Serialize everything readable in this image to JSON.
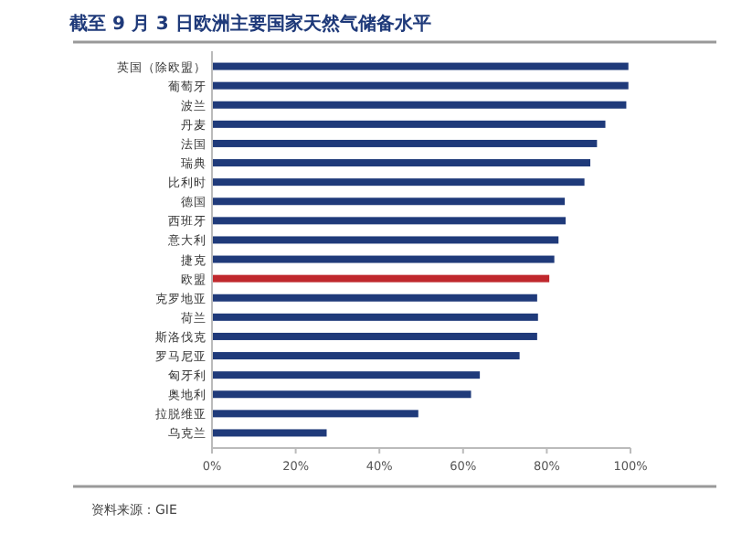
{
  "chart_data": {
    "type": "bar",
    "orientation": "horizontal",
    "title": "截至 9 月 3 日欧洲主要国家天然气储备水平",
    "categories": [
      "英国（除欧盟）",
      "葡萄牙",
      "波兰",
      "丹麦",
      "法国",
      "瑞典",
      "比利时",
      "德国",
      "西班牙",
      "意大利",
      "捷克",
      "欧盟",
      "克罗地亚",
      "荷兰",
      "斯洛伐克",
      "罗马尼亚",
      "匈牙利",
      "奥地利",
      "拉脱维亚",
      "乌克兰"
    ],
    "values": [
      99.5,
      99.5,
      99,
      94,
      92,
      90.4,
      89,
      84.3,
      84.5,
      82.8,
      81.8,
      80.6,
      77.7,
      77.9,
      77.7,
      73.5,
      64,
      61.9,
      49.3,
      27.4
    ],
    "colors": [
      "#1f3a7a",
      "#1f3a7a",
      "#1f3a7a",
      "#1f3a7a",
      "#1f3a7a",
      "#1f3a7a",
      "#1f3a7a",
      "#1f3a7a",
      "#1f3a7a",
      "#1f3a7a",
      "#1f3a7a",
      "#c0282d",
      "#1f3a7a",
      "#1f3a7a",
      "#1f3a7a",
      "#1f3a7a",
      "#1f3a7a",
      "#1f3a7a",
      "#1f3a7a",
      "#1f3a7a"
    ],
    "xlim": [
      0,
      100
    ],
    "xticks": [
      {
        "value": 0,
        "label": "0%"
      },
      {
        "value": 20,
        "label": "20%"
      },
      {
        "value": 40,
        "label": "40%"
      },
      {
        "value": 60,
        "label": "60%"
      },
      {
        "value": 80,
        "label": "80%"
      },
      {
        "value": 100,
        "label": "100%"
      }
    ],
    "annotations": [
      "资料来源：GIE"
    ]
  }
}
